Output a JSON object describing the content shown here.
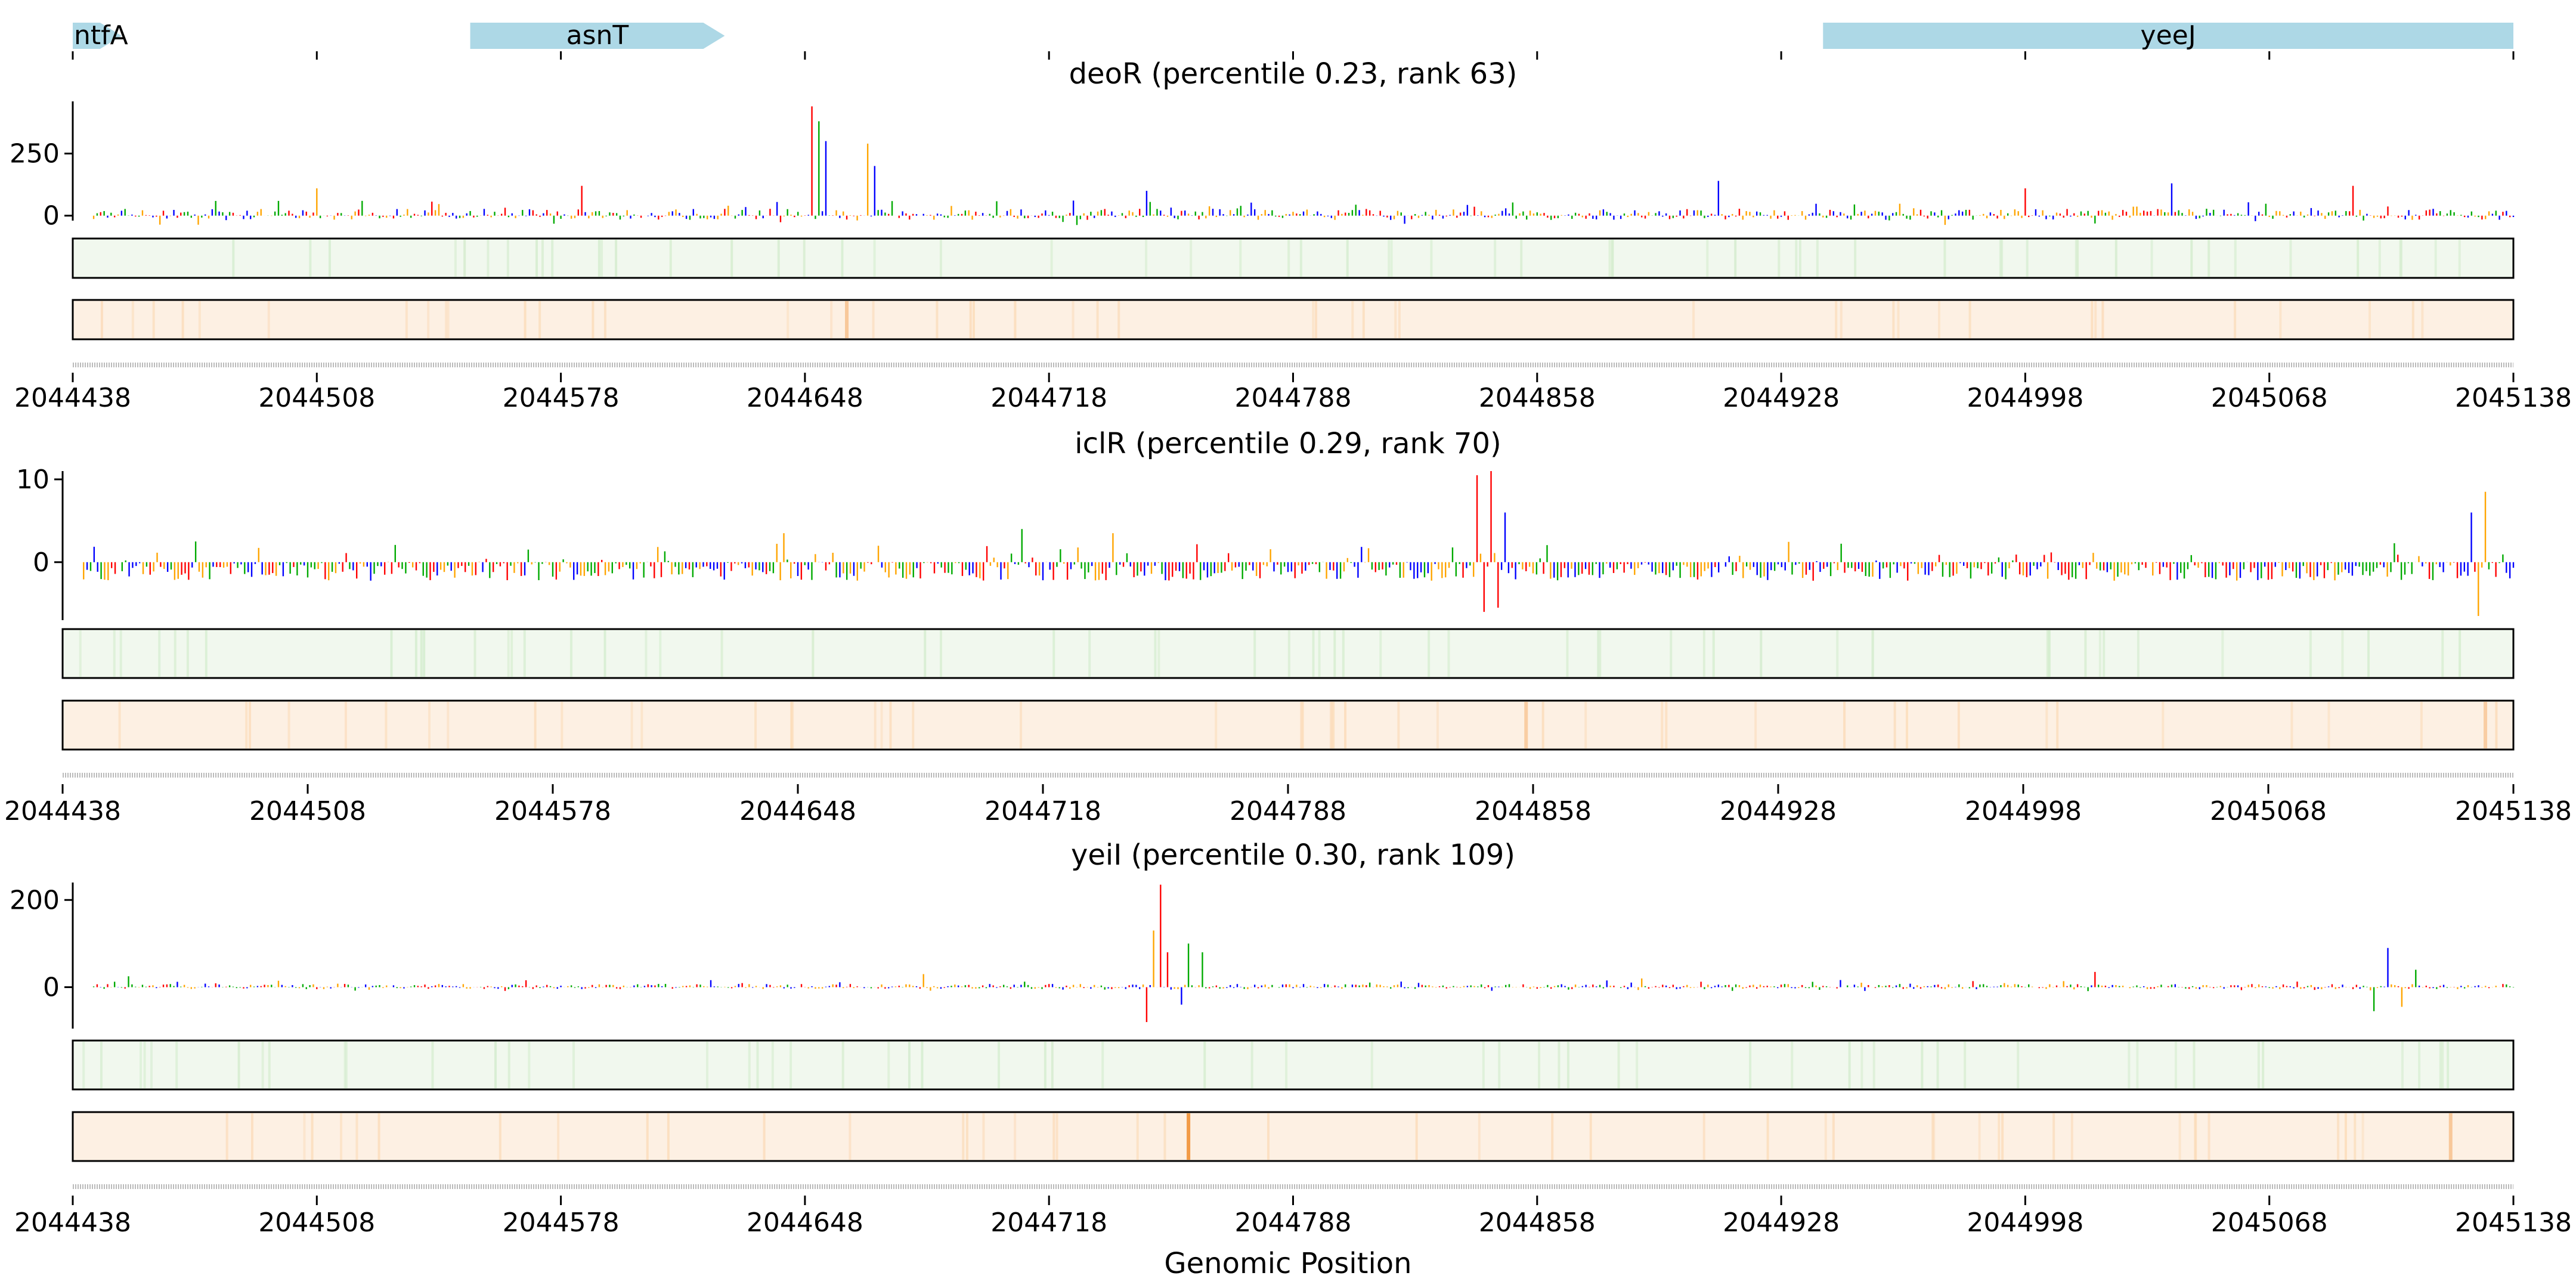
{
  "chart_data": {
    "type": "sequence-track",
    "xlabel": "Genomic Position",
    "x_range": [
      2044438,
      2045138
    ],
    "x_ticks": [
      "2044438",
      "2044508",
      "2044578",
      "2044648",
      "2044718",
      "2044788",
      "2044858",
      "2044928",
      "2044998",
      "2045068",
      "2045138"
    ],
    "genes": [
      {
        "name": "ntfA",
        "start": 2044438,
        "end": 2044452,
        "strand": "+"
      },
      {
        "name": "asnT",
        "start": 2044552,
        "end": 2044625,
        "strand": "+"
      },
      {
        "name": "yeeJ",
        "start": 2044940,
        "end": 2045138,
        "strand": "+"
      }
    ],
    "panels": [
      {
        "title": "deoR (percentile 0.23, rank 63)",
        "y_ticks": [
          "250",
          "0"
        ],
        "y_tick_values": [
          250,
          0
        ],
        "ylim": [
          -20,
          460
        ],
        "peaks": [
          {
            "pos": 2044650,
            "value": 440
          },
          {
            "pos": 2044652,
            "value": 380
          },
          {
            "pos": 2044654,
            "value": 300
          },
          {
            "pos": 2044666,
            "value": 290
          },
          {
            "pos": 2044668,
            "value": 200
          },
          {
            "pos": 2044508,
            "value": 110
          },
          {
            "pos": 2044584,
            "value": 120
          },
          {
            "pos": 2044746,
            "value": 100
          },
          {
            "pos": 2044910,
            "value": 140
          },
          {
            "pos": 2044998,
            "value": 110
          },
          {
            "pos": 2045040,
            "value": 130
          },
          {
            "pos": 2045092,
            "value": 120
          }
        ],
        "background_amp": 45,
        "heat_highlight": [
          {
            "pos": 2044660,
            "intensity": 0.4
          }
        ]
      },
      {
        "title": "iclR (percentile 0.29, rank 70)",
        "y_ticks": [
          "10",
          "0"
        ],
        "y_tick_values": [
          10,
          0
        ],
        "ylim": [
          -7,
          11
        ],
        "peaks": [
          {
            "pos": 2044842,
            "value": 10.5
          },
          {
            "pos": 2044846,
            "value": 11
          },
          {
            "pos": 2044848,
            "value": -5.5
          },
          {
            "pos": 2044844,
            "value": -6
          },
          {
            "pos": 2044850,
            "value": 6
          },
          {
            "pos": 2045130,
            "value": 8.5
          },
          {
            "pos": 2045126,
            "value": 6
          },
          {
            "pos": 2045128,
            "value": -6.5
          },
          {
            "pos": 2044644,
            "value": 3.5
          },
          {
            "pos": 2044712,
            "value": 4
          },
          {
            "pos": 2044738,
            "value": 3.5
          },
          {
            "pos": 2044476,
            "value": 2.5
          }
        ],
        "background_amp": 2.8,
        "heat_highlight": [
          {
            "pos": 2044856,
            "intensity": 0.35
          },
          {
            "pos": 2045130,
            "intensity": 0.35
          }
        ]
      },
      {
        "title": "yeiI (percentile 0.30, rank 109)",
        "y_ticks": [
          "200",
          "0"
        ],
        "y_tick_values": [
          200,
          0
        ],
        "ylim": [
          -95,
          240
        ],
        "peaks": [
          {
            "pos": 2044750,
            "value": 235
          },
          {
            "pos": 2044748,
            "value": 130
          },
          {
            "pos": 2044746,
            "value": -80
          },
          {
            "pos": 2044752,
            "value": 80
          },
          {
            "pos": 2044758,
            "value": 100
          },
          {
            "pos": 2044762,
            "value": 80
          },
          {
            "pos": 2044756,
            "value": -40
          },
          {
            "pos": 2045102,
            "value": 90
          },
          {
            "pos": 2045098,
            "value": -55
          },
          {
            "pos": 2045106,
            "value": -45
          },
          {
            "pos": 2045110,
            "value": 40
          },
          {
            "pos": 2044682,
            "value": 30
          },
          {
            "pos": 2044454,
            "value": 25
          },
          {
            "pos": 2045018,
            "value": 35
          },
          {
            "pos": 2044888,
            "value": 20
          }
        ],
        "background_amp": 12,
        "heat_highlight": [
          {
            "pos": 2044758,
            "intensity": 0.85
          },
          {
            "pos": 2045120,
            "intensity": 0.4
          }
        ]
      }
    ]
  }
}
